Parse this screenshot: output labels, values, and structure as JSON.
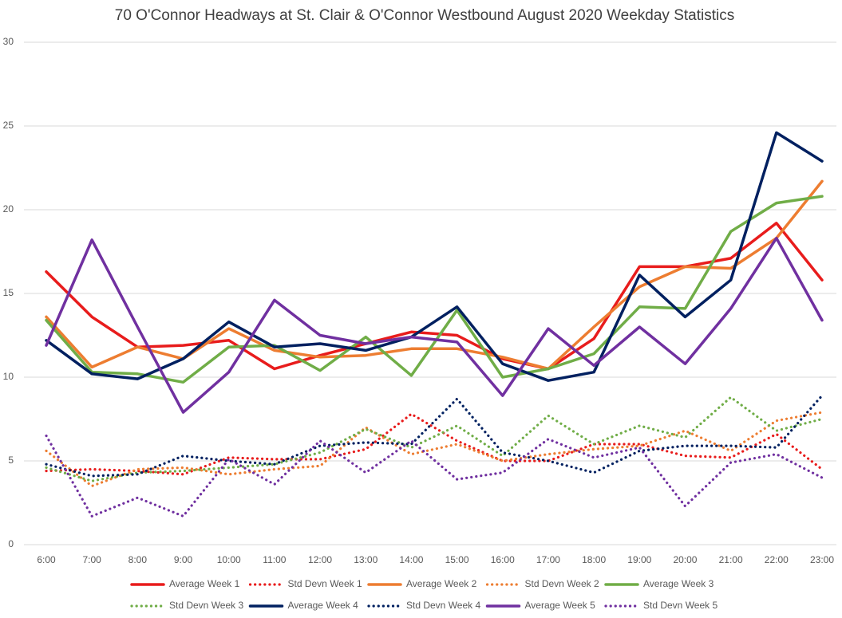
{
  "chart_data": {
    "type": "line",
    "title": "70 O'Connor Headways at St. Clair & O'Connor Westbound August 2020 Weekday Statistics",
    "categories": [
      "6:00",
      "7:00",
      "8:00",
      "9:00",
      "10:00",
      "11:00",
      "12:00",
      "13:00",
      "14:00",
      "15:00",
      "16:00",
      "17:00",
      "18:00",
      "19:00",
      "20:00",
      "21:00",
      "22:00",
      "23:00"
    ],
    "ylim": [
      0,
      30
    ],
    "yticks": [
      0,
      5,
      10,
      15,
      20,
      25,
      30
    ],
    "grid": true,
    "legend": "bottom",
    "series": [
      {
        "name": "Average Week 1",
        "color": "#e81c1c",
        "line_style": "solid",
        "values": [
          16.3,
          13.6,
          11.8,
          11.9,
          12.2,
          10.5,
          11.3,
          12.0,
          12.7,
          12.5,
          11.1,
          10.5,
          12.3,
          16.6,
          16.6,
          17.1,
          19.2,
          15.8
        ]
      },
      {
        "name": "Std Devn Week 1",
        "color": "#e81c1c",
        "line_style": "dotted",
        "values": [
          4.4,
          4.5,
          4.4,
          4.2,
          5.2,
          5.1,
          5.1,
          5.7,
          7.8,
          6.2,
          5.0,
          5.0,
          6.0,
          6.0,
          5.3,
          5.2,
          6.6,
          4.5
        ]
      },
      {
        "name": "Average Week 2",
        "color": "#ed7d31",
        "line_style": "solid",
        "values": [
          13.6,
          10.6,
          11.8,
          11.1,
          12.9,
          11.6,
          11.2,
          11.3,
          11.7,
          11.7,
          11.2,
          10.5,
          13.0,
          15.4,
          16.6,
          16.5,
          18.3,
          21.7
        ]
      },
      {
        "name": "Std Devn Week 2",
        "color": "#ed7d31",
        "line_style": "dotted",
        "values": [
          5.6,
          3.5,
          4.5,
          4.6,
          4.2,
          4.5,
          4.7,
          7.0,
          5.4,
          6.0,
          5.0,
          5.4,
          5.7,
          5.9,
          6.8,
          5.6,
          7.4,
          7.9
        ]
      },
      {
        "name": "Average Week 3",
        "color": "#70ad47",
        "line_style": "solid",
        "values": [
          13.4,
          10.3,
          10.2,
          9.7,
          11.8,
          11.9,
          10.4,
          12.4,
          10.1,
          14.0,
          10.0,
          10.5,
          11.4,
          14.2,
          14.1,
          18.7,
          20.4,
          20.8
        ]
      },
      {
        "name": "Std Devn Week 3",
        "color": "#70ad47",
        "line_style": "dotted",
        "values": [
          4.6,
          3.8,
          4.3,
          4.4,
          4.6,
          4.8,
          5.5,
          6.9,
          5.8,
          7.1,
          5.3,
          7.7,
          6.0,
          7.1,
          6.4,
          8.8,
          6.8,
          7.5
        ]
      },
      {
        "name": "Average Week 4",
        "color": "#002060",
        "line_style": "solid",
        "values": [
          12.2,
          10.2,
          9.9,
          11.1,
          13.3,
          11.8,
          12.0,
          11.6,
          12.4,
          14.2,
          10.8,
          9.8,
          10.3,
          16.1,
          13.6,
          15.8,
          24.6,
          22.9
        ]
      },
      {
        "name": "Std Devn Week 4",
        "color": "#002060",
        "line_style": "dotted",
        "values": [
          4.8,
          4.1,
          4.2,
          5.3,
          5.0,
          4.8,
          5.9,
          6.1,
          6.0,
          8.7,
          5.5,
          5.0,
          4.3,
          5.6,
          5.9,
          5.9,
          5.8,
          8.9
        ]
      },
      {
        "name": "Average Week 5",
        "color": "#7030a0",
        "line_style": "solid",
        "values": [
          11.9,
          18.2,
          13.0,
          7.9,
          10.3,
          14.6,
          12.5,
          12.0,
          12.4,
          12.1,
          8.9,
          12.9,
          10.7,
          13.0,
          10.8,
          14.1,
          18.3,
          13.4
        ]
      },
      {
        "name": "Std Devn Week 5",
        "color": "#7030a0",
        "line_style": "dotted",
        "values": [
          6.5,
          1.7,
          2.8,
          1.7,
          5.1,
          3.6,
          6.2,
          4.3,
          6.2,
          3.9,
          4.3,
          6.3,
          5.2,
          5.8,
          2.3,
          4.9,
          5.4,
          4.0
        ]
      }
    ]
  }
}
